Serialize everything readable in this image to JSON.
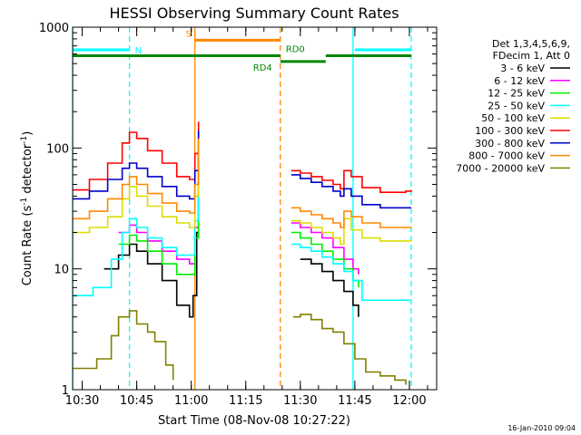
{
  "chart_data": {
    "type": "line",
    "title": "HESSI Observing Summary Count Rates",
    "xlabel": "Start Time (08-Nov-08 10:27:22)",
    "ylabel": "Count Rate (s",
    "ylabel_sup1": "-1",
    "ylabel_mid": " detector",
    "ylabel_sup2": "-1",
    "ylabel_end": ")",
    "y_scale": "log",
    "ylim": [
      1,
      1000
    ],
    "xlim_minutes": [
      627.37,
      727.5
    ],
    "x_ticks": [
      {
        "label": "10:30",
        "t": 630
      },
      {
        "label": "10:45",
        "t": 645
      },
      {
        "label": "11:00",
        "t": 660
      },
      {
        "label": "11:15",
        "t": 675
      },
      {
        "label": "11:30",
        "t": 690
      },
      {
        "label": "11:45",
        "t": 705
      },
      {
        "label": "12:00",
        "t": 720
      }
    ],
    "y_ticks": [
      {
        "label": "1",
        "v": 1
      },
      {
        "label": "10",
        "v": 10
      },
      {
        "label": "100",
        "v": 100
      },
      {
        "label": "1000",
        "v": 1000
      }
    ],
    "legend_header": [
      "Det 1,3,4,5,6,9,",
      "FDecim 1, Att 0"
    ],
    "footer_date": "16-Jan-2010 09:04",
    "series": [
      {
        "name": "3 - 6 keV",
        "color": "#000000",
        "x": [
          627.4,
          636,
          640,
          643,
          645,
          648,
          652,
          656,
          659.5,
          660.5,
          661.5,
          662
        ],
        "y": [
          null,
          10,
          13,
          16,
          14,
          11,
          8,
          5,
          4,
          6,
          20,
          80
        ],
        "x2": [
          687.5,
          690,
          693,
          696,
          699,
          702,
          704.5,
          706
        ],
        "y2": [
          null,
          12,
          11,
          9.5,
          8,
          6.5,
          5,
          4
        ]
      },
      {
        "name": "6 - 12 keV",
        "color": "#ff00ff",
        "x": [
          640,
          643,
          645,
          648,
          652,
          656,
          659.5,
          661,
          662
        ],
        "y": [
          20,
          23,
          20,
          17,
          14,
          12,
          11,
          22,
          95
        ],
        "x2": [
          687.5,
          690,
          693,
          696,
          699,
          702,
          704.5,
          706
        ],
        "y2": [
          24,
          22,
          20,
          18,
          15,
          12,
          10,
          9
        ]
      },
      {
        "name": "12 - 25 keV",
        "color": "#00ee00",
        "x": [
          640,
          643,
          645,
          648,
          652,
          656,
          659.5,
          661,
          662
        ],
        "y": [
          16,
          19,
          17,
          14,
          11,
          9,
          9,
          18,
          90
        ],
        "x2": [
          687.5,
          690,
          693,
          696,
          699,
          702,
          704.5,
          706
        ],
        "y2": [
          20,
          18,
          16,
          14,
          12,
          10,
          8,
          7
        ]
      },
      {
        "name": "25 - 50 keV",
        "color": "#00ffff",
        "x": [
          627.4,
          633,
          638,
          641,
          643,
          645,
          648,
          652,
          656,
          659.5,
          661,
          662
        ],
        "y": [
          6,
          7,
          12,
          20,
          26,
          22,
          18,
          15,
          13,
          13,
          25,
          100
        ],
        "x2": [
          687.5,
          690,
          693,
          696,
          699,
          702,
          704.5,
          707,
          712,
          719,
          720.5
        ],
        "y2": [
          16,
          15,
          14,
          12.5,
          11,
          9.5,
          8,
          5.5,
          5.5,
          5.5,
          5.5
        ]
      },
      {
        "name": "50 - 100 keV",
        "color": "#dddd00",
        "x": [
          627.4,
          632,
          637,
          641,
          643,
          645,
          648,
          652,
          656,
          659.5,
          661,
          662
        ],
        "y": [
          20,
          22,
          27,
          38,
          48,
          40,
          33,
          27,
          24,
          22,
          40,
          110
        ],
        "x2": [
          687.5,
          690,
          693,
          696,
          699,
          701,
          702,
          704,
          707,
          712,
          719,
          720.5
        ],
        "y2": [
          25,
          24,
          22,
          20,
          18,
          16,
          26,
          21,
          18,
          17,
          17,
          17
        ]
      },
      {
        "name": "100 - 300 keV",
        "color": "#ff0000",
        "x": [
          627.4,
          632,
          637,
          641,
          643,
          645,
          648,
          652,
          656,
          659.5,
          661,
          662
        ],
        "y": [
          45,
          55,
          75,
          110,
          135,
          120,
          95,
          75,
          58,
          55,
          90,
          165
        ],
        "x2": [
          687.5,
          690,
          693,
          696,
          699,
          701,
          702,
          704,
          707,
          712,
          719,
          720.5
        ],
        "y2": [
          65,
          62,
          58,
          54,
          50,
          46,
          65,
          58,
          47,
          43,
          44,
          45
        ]
      },
      {
        "name": "300 - 800 keV",
        "color": "#0000cc",
        "x": [
          627.4,
          632,
          637,
          641,
          643,
          645,
          648,
          652,
          656,
          659.5,
          661,
          662
        ],
        "y": [
          38,
          44,
          55,
          68,
          75,
          68,
          58,
          48,
          40,
          38,
          65,
          140
        ],
        "x2": [
          687.5,
          690,
          693,
          696,
          699,
          701,
          702,
          704,
          707,
          712,
          719,
          720.5
        ],
        "y2": [
          60,
          56,
          52,
          48,
          44,
          40,
          46,
          40,
          34,
          32,
          32,
          32
        ]
      },
      {
        "name": "800 - 7000 keV",
        "color": "#ff8800",
        "x": [
          627.4,
          632,
          637,
          641,
          643,
          645,
          648,
          652,
          656,
          659.5,
          661,
          662
        ],
        "y": [
          26,
          30,
          38,
          50,
          58,
          50,
          42,
          35,
          30,
          29,
          50,
          120
        ],
        "x2": [
          687.5,
          690,
          693,
          696,
          699,
          701,
          702,
          704,
          707,
          712,
          719,
          720.5
        ],
        "y2": [
          32,
          30,
          28,
          26,
          24,
          22,
          30,
          27,
          24,
          22,
          22,
          22
        ]
      },
      {
        "name": "7000 - 20000 keV",
        "color": "#808000",
        "x": [
          627.4,
          634,
          638,
          640,
          643,
          645,
          648,
          650,
          653,
          655
        ],
        "y": [
          1.5,
          1.8,
          2.8,
          4,
          4.5,
          3.5,
          3,
          2.5,
          1.6,
          1.2
        ],
        "x2": [
          688,
          690,
          693,
          696,
          699,
          702,
          705,
          708,
          712,
          716,
          719
        ],
        "y2": [
          4,
          4.2,
          3.8,
          3.2,
          3,
          2.4,
          1.8,
          1.4,
          1.3,
          1.2,
          1.1
        ]
      }
    ],
    "flags": [
      {
        "label": "N",
        "color": "#00ffff",
        "v": 650,
        "segments": [
          [
            627.4,
            643
          ]
        ]
      },
      {
        "label": "N",
        "color": "#00ffff",
        "v": 650,
        "segments": [
          [
            705,
            720.5
          ]
        ]
      },
      {
        "label": "S",
        "color": "#ff8800",
        "v": 780,
        "segments": [
          [
            661,
            684.5
          ]
        ]
      },
      {
        "label": "RD0",
        "color": "#008800",
        "v": 580,
        "segments": [
          [
            627.4,
            684.5
          ],
          [
            697,
            720.5
          ]
        ]
      },
      {
        "label": "RD4",
        "color": "#008800",
        "v": 520,
        "segments": [
          [
            684.5,
            697
          ]
        ]
      }
    ],
    "vlines": [
      {
        "t": 627.4,
        "color": "#00ffff",
        "dashed": false
      },
      {
        "t": 643,
        "color": "#00ffff",
        "dashed": true
      },
      {
        "t": 661,
        "color": "#ff8800",
        "dashed": false
      },
      {
        "t": 684.5,
        "color": "#ff8800",
        "dashed": true
      },
      {
        "t": 704.5,
        "color": "#00ffff",
        "dashed": false
      },
      {
        "t": 720.5,
        "color": "#00ffff",
        "dashed": true
      }
    ],
    "grid": false,
    "legend_position": "right"
  }
}
